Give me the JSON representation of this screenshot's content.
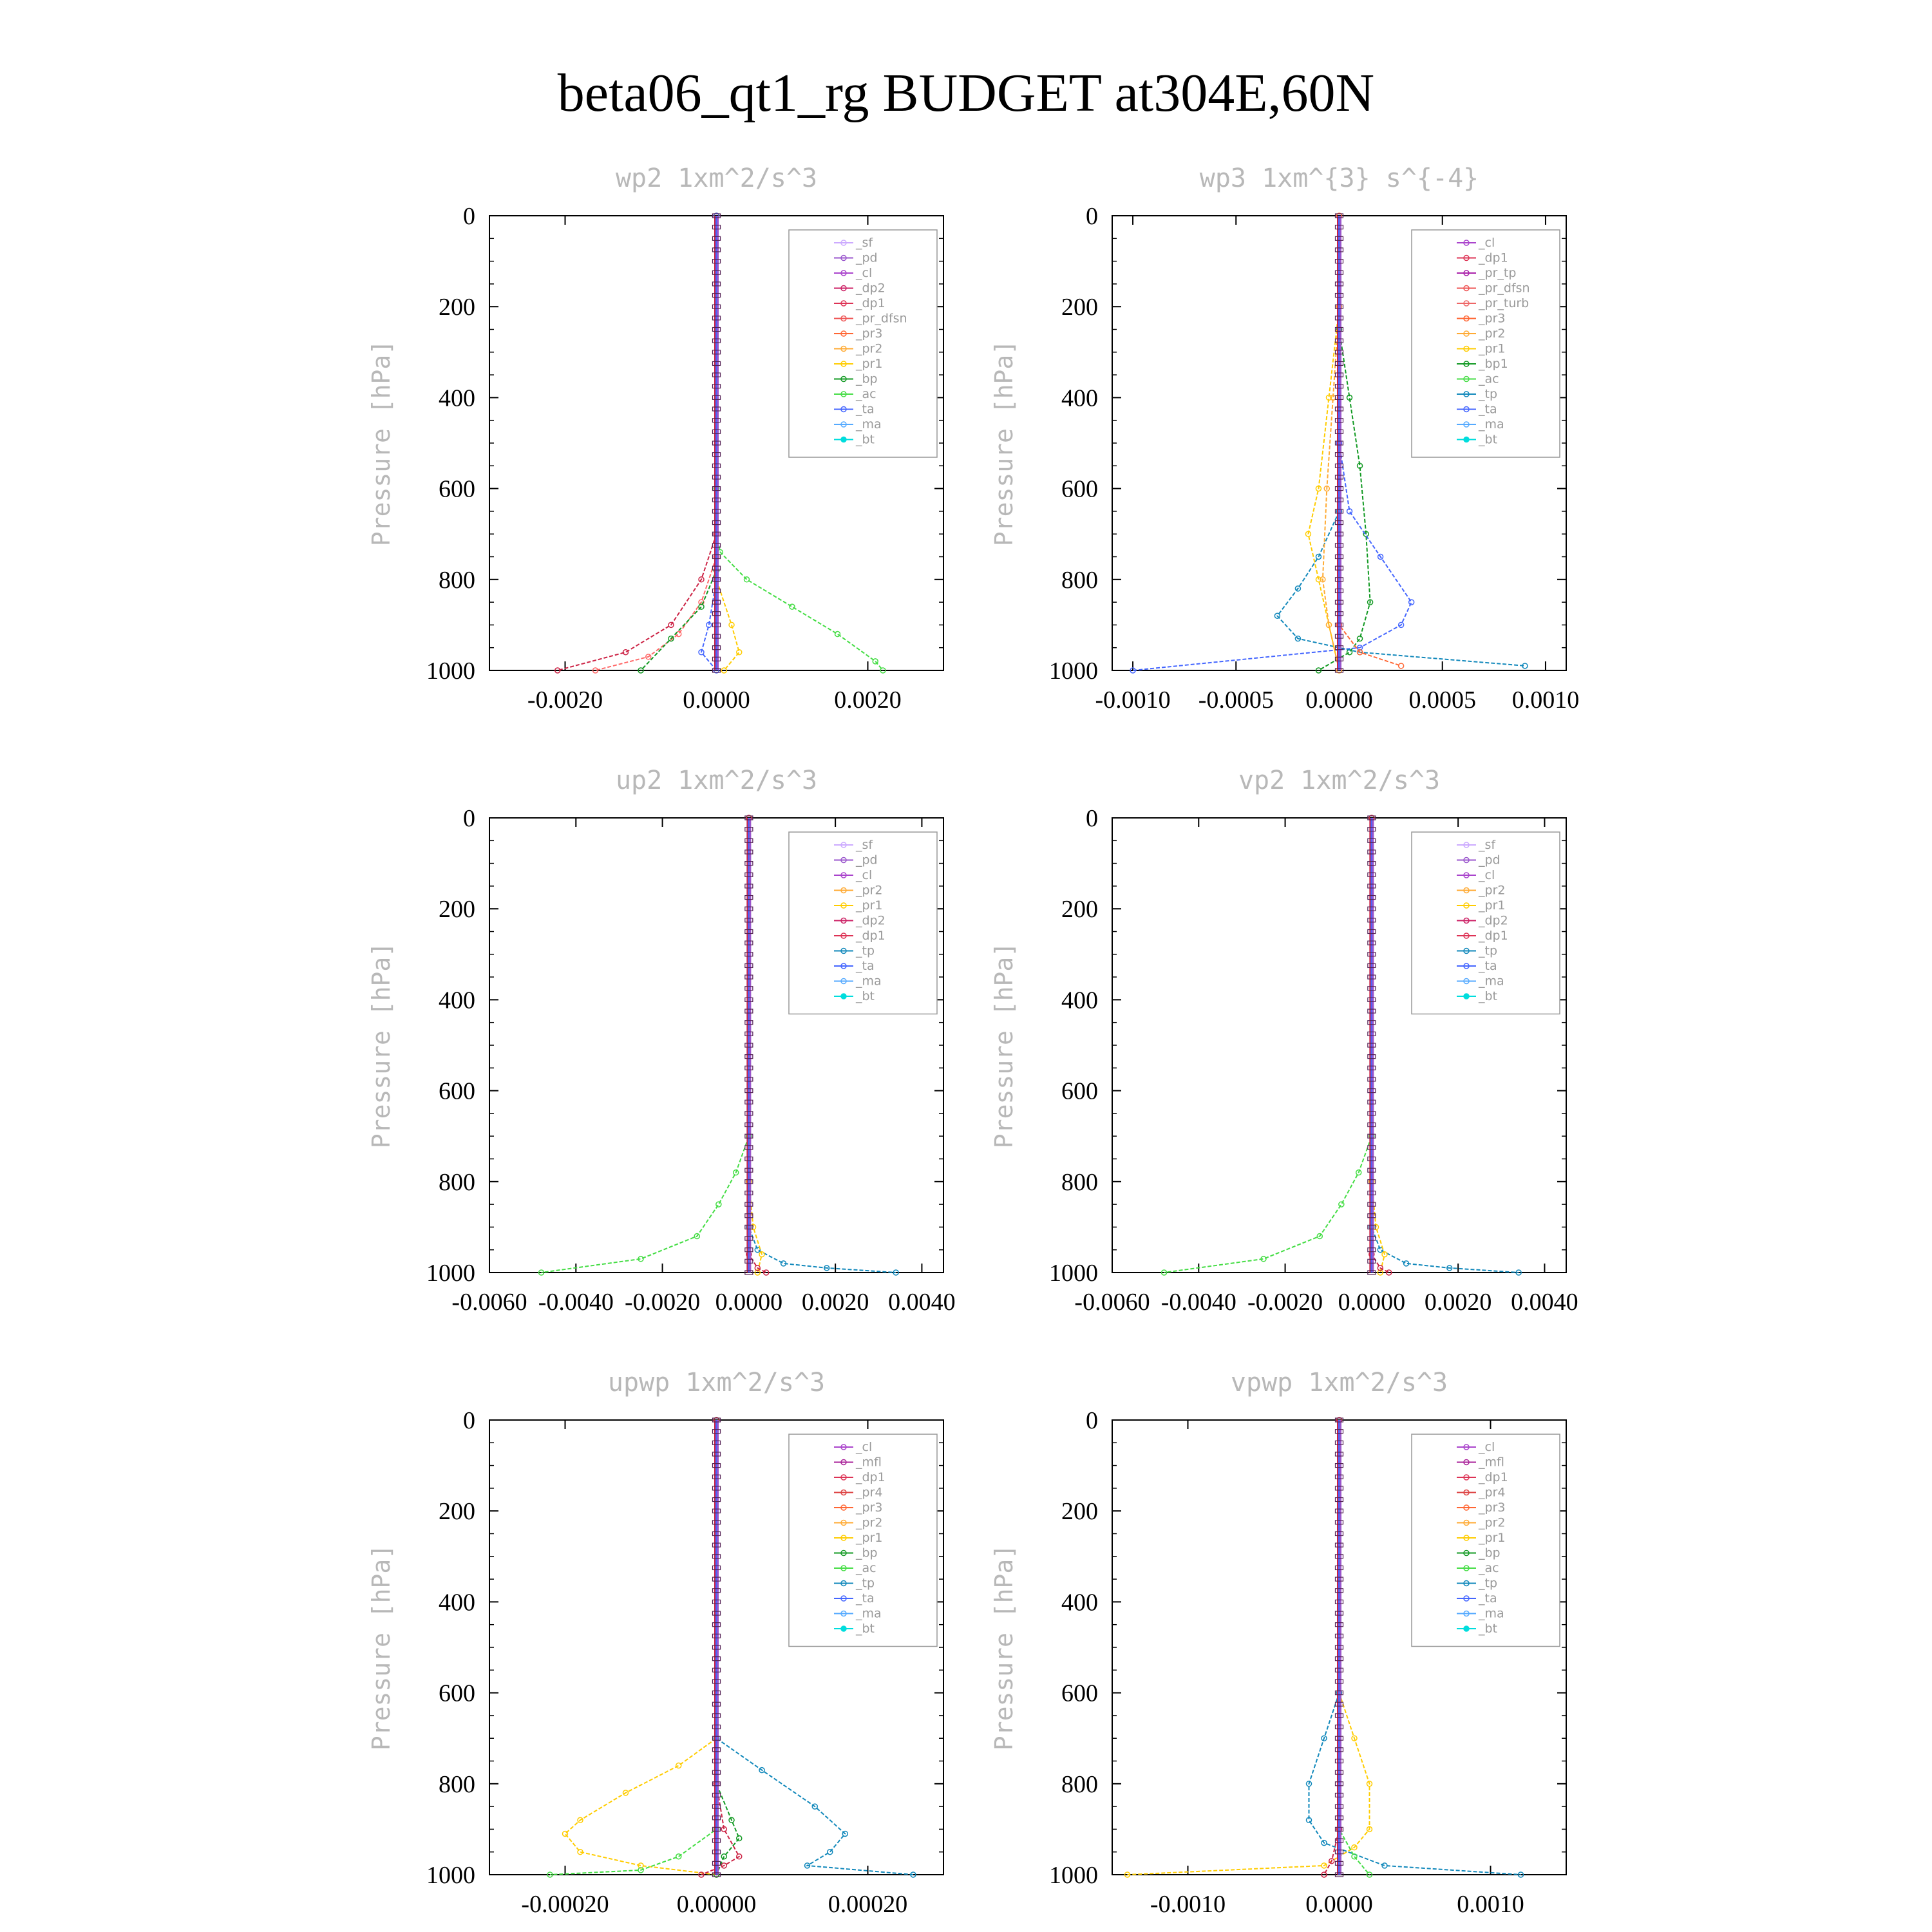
{
  "title": "beta06_qt1_rg  BUDGET at304E,60N",
  "panels": [
    {
      "title": "wp2   1xm^2/s^3",
      "ylabel": "Pressure [hPa]",
      "xlim": [
        -0.003,
        0.003
      ],
      "xticks": [
        -0.002,
        0.0,
        0.002
      ],
      "xticklabels": [
        "-0.0020",
        "0.0000",
        "0.0020"
      ],
      "ylim": [
        0,
        1000
      ],
      "yticks": [
        0,
        200,
        400,
        600,
        800,
        1000
      ],
      "yticklabels": [
        "0",
        "200",
        "400",
        "600",
        "800",
        "1000"
      ],
      "legend": [
        "_sf",
        "_pd",
        "_cl",
        "_dp2",
        "_dp1",
        "_pr_dfsn",
        "_pr3",
        "_pr2",
        "_pr1",
        "_bp",
        "_ac",
        "_ta",
        "_ma",
        "_bt"
      ]
    },
    {
      "title": "wp3   1xm^{3} s^{-4}",
      "ylabel": "Pressure [hPa]",
      "xlim": [
        -0.0011,
        0.0011
      ],
      "xticks": [
        -0.001,
        -0.0005,
        0.0,
        0.0005,
        0.001
      ],
      "xticklabels": [
        "-0.0010",
        "-0.0005",
        "0.0000",
        "0.0005",
        "0.0010"
      ],
      "ylim": [
        0,
        1000
      ],
      "yticks": [
        0,
        200,
        400,
        600,
        800,
        1000
      ],
      "yticklabels": [
        "0",
        "200",
        "400",
        "600",
        "800",
        "1000"
      ],
      "legend": [
        "_cl",
        "_dp1",
        "_pr_tp",
        "_pr_dfsn",
        "_pr_turb",
        "_pr3",
        "_pr2",
        "_pr1",
        "_bp1",
        "_ac",
        "_tp",
        "_ta",
        "_ma",
        "_bt"
      ]
    },
    {
      "title": "up2   1xm^2/s^3",
      "ylabel": "Pressure [hPa]",
      "xlim": [
        -0.006,
        0.0045
      ],
      "xticks": [
        -0.006,
        -0.004,
        -0.002,
        0.0,
        0.002,
        0.004
      ],
      "xticklabels": [
        "-0.0060",
        "-0.0040",
        "-0.0020",
        "0.0000",
        "0.0020",
        "0.0040"
      ],
      "ylim": [
        0,
        1000
      ],
      "yticks": [
        0,
        200,
        400,
        600,
        800,
        1000
      ],
      "yticklabels": [
        "0",
        "200",
        "400",
        "600",
        "800",
        "1000"
      ],
      "legend": [
        "_sf",
        "_pd",
        "_cl",
        "_pr2",
        "_pr1",
        "_dp2",
        "_dp1",
        "_tp",
        "_ta",
        "_ma",
        "_bt"
      ]
    },
    {
      "title": "vp2   1xm^2/s^3",
      "ylabel": "Pressure [hPa]",
      "xlim": [
        -0.006,
        0.0045
      ],
      "xticks": [
        -0.006,
        -0.004,
        -0.002,
        0.0,
        0.002,
        0.004
      ],
      "xticklabels": [
        "-0.0060",
        "-0.0040",
        "-0.0020",
        "0.0000",
        "0.0020",
        "0.0040"
      ],
      "ylim": [
        0,
        1000
      ],
      "yticks": [
        0,
        200,
        400,
        600,
        800,
        1000
      ],
      "yticklabels": [
        "0",
        "200",
        "400",
        "600",
        "800",
        "1000"
      ],
      "legend": [
        "_sf",
        "_pd",
        "_cl",
        "_pr2",
        "_pr1",
        "_dp2",
        "_dp1",
        "_tp",
        "_ta",
        "_ma",
        "_bt"
      ]
    },
    {
      "title": "upwp   1xm^2/s^3",
      "ylabel": "Pressure [hPa]",
      "xlim": [
        -0.0003,
        0.0003
      ],
      "xticks": [
        -0.0002,
        0.0,
        0.0002
      ],
      "xticklabels": [
        "-0.00020",
        "0.00000",
        "0.00020"
      ],
      "ylim": [
        0,
        1000
      ],
      "yticks": [
        0,
        200,
        400,
        600,
        800,
        1000
      ],
      "yticklabels": [
        "0",
        "200",
        "400",
        "600",
        "800",
        "1000"
      ],
      "legend": [
        "_cl",
        "_mfl",
        "_dp1",
        "_pr4",
        "_pr3",
        "_pr2",
        "_pr1",
        "_bp",
        "_ac",
        "_tp",
        "_ta",
        "_ma",
        "_bt"
      ]
    },
    {
      "title": "vpwp   1xm^2/s^3",
      "ylabel": "Pressure [hPa]",
      "xlim": [
        -0.0015,
        0.0015
      ],
      "xticks": [
        -0.001,
        0.0,
        0.001
      ],
      "xticklabels": [
        "-0.0010",
        "0.0000",
        "0.0010"
      ],
      "ylim": [
        0,
        1000
      ],
      "yticks": [
        0,
        200,
        400,
        600,
        800,
        1000
      ],
      "yticklabels": [
        "0",
        "200",
        "400",
        "600",
        "800",
        "1000"
      ],
      "legend": [
        "_cl",
        "_mfl",
        "_dp1",
        "_pr4",
        "_pr3",
        "_pr2",
        "_pr1",
        "_bp",
        "_ac",
        "_tp",
        "_ta",
        "_ma",
        "_bt"
      ]
    }
  ],
  "chart_data": [
    {
      "type": "line",
      "panel": "wp2",
      "ylim": [
        0,
        1000
      ],
      "xlim": [
        -0.003,
        0.003
      ],
      "series": [
        {
          "name": "_ac",
          "color": "#44dd44",
          "x": [
            0,
            0,
            0,
            5e-05,
            0.0004,
            0.001,
            0.0016,
            0.0021,
            0.0022
          ],
          "y": [
            0,
            600,
            700,
            740,
            800,
            860,
            920,
            980,
            1000
          ]
        },
        {
          "name": "_pd",
          "color": "#cc2244",
          "x": [
            0,
            0,
            -0.0002,
            -0.0006,
            -0.0012,
            -0.0021
          ],
          "y": [
            0,
            700,
            800,
            900,
            960,
            1000
          ]
        },
        {
          "name": "_dp1",
          "color": "#ff6666",
          "x": [
            0,
            0,
            -0.0002,
            -0.0005,
            -0.0009,
            -0.0016
          ],
          "y": [
            0,
            750,
            850,
            920,
            970,
            1000
          ]
        },
        {
          "name": "_bp",
          "color": "#119922",
          "x": [
            0,
            0,
            -0.0002,
            -0.0006,
            -0.001
          ],
          "y": [
            0,
            780,
            860,
            930,
            1000
          ]
        },
        {
          "name": "_pr1",
          "color": "#ffcc00",
          "x": [
            0,
            0,
            0.0002,
            0.0003,
            0.0001
          ],
          "y": [
            0,
            800,
            900,
            960,
            1000
          ]
        },
        {
          "name": "_ta",
          "color": "#4466ff",
          "x": [
            0,
            0,
            -0.0001,
            -0.0002,
            0
          ],
          "y": [
            0,
            800,
            900,
            960,
            1000
          ]
        }
      ]
    },
    {
      "type": "line",
      "panel": "wp3",
      "ylim": [
        0,
        1000
      ],
      "xlim": [
        -0.0011,
        0.0011
      ],
      "series": [
        {
          "name": "_bp1",
          "color": "#119922",
          "x": [
            0,
            5e-05,
            0.0001,
            0.00013,
            0.00015,
            0.0001,
            5e-05,
            -0.0001
          ],
          "y": [
            250,
            400,
            550,
            700,
            850,
            930,
            960,
            1000
          ]
        },
        {
          "name": "_ta",
          "color": "#4466ff",
          "x": [
            0,
            5e-05,
            0.0002,
            0.00035,
            0.0003,
            0.0001,
            -0.001
          ],
          "y": [
            500,
            650,
            750,
            850,
            900,
            950,
            1000
          ]
        },
        {
          "name": "_tp",
          "color": "#1188bb",
          "x": [
            0,
            -0.0001,
            -0.0002,
            -0.0003,
            -0.0002,
            0.0001,
            0.0009
          ],
          "y": [
            650,
            750,
            820,
            880,
            930,
            960,
            990
          ]
        },
        {
          "name": "_pr1",
          "color": "#ffcc00",
          "x": [
            0,
            -5e-05,
            -0.0001,
            -0.00015,
            -0.0001,
            -5e-05,
            0
          ],
          "y": [
            200,
            400,
            600,
            700,
            800,
            900,
            1000
          ]
        },
        {
          "name": "_pr2",
          "color": "#ffaa33",
          "x": [
            0,
            -3e-05,
            -6e-05,
            -8e-05,
            -5e-05,
            0
          ],
          "y": [
            200,
            400,
            600,
            800,
            900,
            1000
          ]
        },
        {
          "name": "_pr3",
          "color": "#ff6633",
          "x": [
            0,
            0,
            0.0001,
            0.0003
          ],
          "y": [
            0,
            900,
            960,
            990
          ]
        }
      ]
    },
    {
      "type": "line",
      "panel": "up2",
      "ylim": [
        0,
        1000
      ],
      "xlim": [
        -0.006,
        0.0045
      ],
      "series": [
        {
          "name": "_dp1",
          "color": "#44dd44",
          "x": [
            0,
            0,
            -0.0003,
            -0.0007,
            -0.0012,
            -0.0025,
            -0.0048
          ],
          "y": [
            0,
            700,
            780,
            850,
            920,
            970,
            1000
          ]
        },
        {
          "name": "_tp",
          "color": "#1188bb",
          "x": [
            0,
            0,
            0.0002,
            0.0008,
            0.0018,
            0.0034
          ],
          "y": [
            0,
            900,
            950,
            980,
            990,
            1000
          ]
        },
        {
          "name": "_pr1",
          "color": "#ffcc00",
          "x": [
            0,
            0,
            0.0001,
            0.0003,
            0.0002
          ],
          "y": [
            0,
            800,
            900,
            960,
            1000
          ]
        },
        {
          "name": "_sf",
          "color": "#cc2244",
          "x": [
            0,
            0,
            0.0002,
            0.0004
          ],
          "y": [
            0,
            960,
            990,
            1000
          ]
        }
      ]
    },
    {
      "type": "line",
      "panel": "vp2",
      "ylim": [
        0,
        1000
      ],
      "xlim": [
        -0.006,
        0.0045
      ],
      "series": [
        {
          "name": "_dp1",
          "color": "#44dd44",
          "x": [
            0,
            0,
            -0.0003,
            -0.0007,
            -0.0012,
            -0.0025,
            -0.0048
          ],
          "y": [
            0,
            700,
            780,
            850,
            920,
            970,
            1000
          ]
        },
        {
          "name": "_tp",
          "color": "#1188bb",
          "x": [
            0,
            0,
            0.0002,
            0.0008,
            0.0018,
            0.0034
          ],
          "y": [
            0,
            900,
            950,
            980,
            990,
            1000
          ]
        },
        {
          "name": "_pr1",
          "color": "#ffcc00",
          "x": [
            0,
            0,
            0.0001,
            0.0003,
            0.0002
          ],
          "y": [
            0,
            800,
            900,
            960,
            1000
          ]
        },
        {
          "name": "_sf",
          "color": "#cc2244",
          "x": [
            0,
            0,
            0.0002,
            0.0004
          ],
          "y": [
            0,
            960,
            990,
            1000
          ]
        }
      ]
    },
    {
      "type": "line",
      "panel": "upwp",
      "ylim": [
        0,
        1000
      ],
      "xlim": [
        -0.0003,
        0.0003
      ],
      "series": [
        {
          "name": "_pr1",
          "color": "#ffcc00",
          "x": [
            0,
            0,
            -5e-05,
            -0.00012,
            -0.00018,
            -0.0002,
            -0.00018,
            -0.0001,
            0
          ],
          "y": [
            0,
            700,
            760,
            820,
            880,
            910,
            950,
            980,
            1000
          ]
        },
        {
          "name": "_tp",
          "color": "#1188bb",
          "x": [
            0,
            0,
            6e-05,
            0.00013,
            0.00017,
            0.00015,
            0.00012,
            0.00026
          ],
          "y": [
            0,
            700,
            770,
            850,
            910,
            950,
            980,
            1000
          ]
        },
        {
          "name": "_ac",
          "color": "#44dd44",
          "x": [
            0,
            0,
            -5e-05,
            -0.0001,
            -0.00022
          ],
          "y": [
            0,
            900,
            960,
            990,
            1000
          ]
        },
        {
          "name": "_bp",
          "color": "#119922",
          "x": [
            0,
            0,
            2e-05,
            3e-05,
            1e-05,
            0
          ],
          "y": [
            0,
            800,
            880,
            920,
            960,
            1000
          ]
        },
        {
          "name": "_dp1",
          "color": "#cc2244",
          "x": [
            0,
            0,
            1e-05,
            3e-05,
            1e-05,
            -2e-05
          ],
          "y": [
            0,
            800,
            900,
            960,
            980,
            1000
          ]
        }
      ]
    },
    {
      "type": "line",
      "panel": "vpwp",
      "ylim": [
        0,
        1000
      ],
      "xlim": [
        -0.0015,
        0.0015
      ],
      "series": [
        {
          "name": "_pr1",
          "color": "#ffcc00",
          "x": [
            0,
            0.0001,
            0.0002,
            0.0002,
            0.0001,
            -0.0001,
            -0.0014
          ],
          "y": [
            600,
            700,
            800,
            900,
            940,
            980,
            1000
          ]
        },
        {
          "name": "_tp",
          "color": "#1188bb",
          "x": [
            0,
            -0.0001,
            -0.0002,
            -0.0002,
            -0.0001,
            0.0003,
            0.0012
          ],
          "y": [
            600,
            700,
            800,
            880,
            930,
            980,
            1000
          ]
        },
        {
          "name": "_ac",
          "color": "#44dd44",
          "x": [
            0,
            0,
            0.0001,
            0.0002
          ],
          "y": [
            0,
            900,
            960,
            1000
          ]
        },
        {
          "name": "_dp1",
          "color": "#cc2244",
          "x": [
            0,
            0,
            -5e-05,
            -0.0001
          ],
          "y": [
            0,
            900,
            970,
            1000
          ]
        }
      ]
    }
  ]
}
